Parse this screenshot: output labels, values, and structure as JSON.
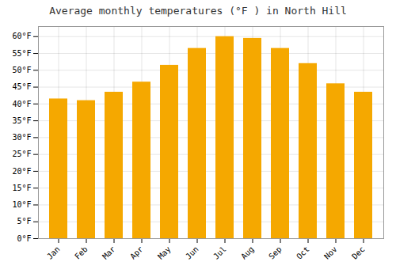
{
  "chart_data": {
    "type": "bar",
    "title": "Average monthly temperatures (°F ) in North Hill",
    "categories": [
      "Jan",
      "Feb",
      "Mar",
      "Apr",
      "May",
      "Jun",
      "Jul",
      "Aug",
      "Sep",
      "Oct",
      "Nov",
      "Dec"
    ],
    "values": [
      41.5,
      41.0,
      43.5,
      46.5,
      51.5,
      56.5,
      60.0,
      59.5,
      56.5,
      52.0,
      46.0,
      43.5
    ],
    "color": "#F5A800",
    "ylim": [
      0,
      63
    ],
    "yticks": [
      {
        "value": 0,
        "label": "0°F"
      },
      {
        "value": 5,
        "label": "5°F"
      },
      {
        "value": 10,
        "label": "10°F"
      },
      {
        "value": 15,
        "label": "15°F"
      },
      {
        "value": 20,
        "label": "20°F"
      },
      {
        "value": 25,
        "label": "25°F"
      },
      {
        "value": 30,
        "label": "30°F"
      },
      {
        "value": 35,
        "label": "35°F"
      },
      {
        "value": 40,
        "label": "40°F"
      },
      {
        "value": 45,
        "label": "45°F"
      },
      {
        "value": 50,
        "label": "50°F"
      },
      {
        "value": 55,
        "label": "55°F"
      },
      {
        "value": 60,
        "label": "60°F"
      }
    ],
    "grid": true
  }
}
